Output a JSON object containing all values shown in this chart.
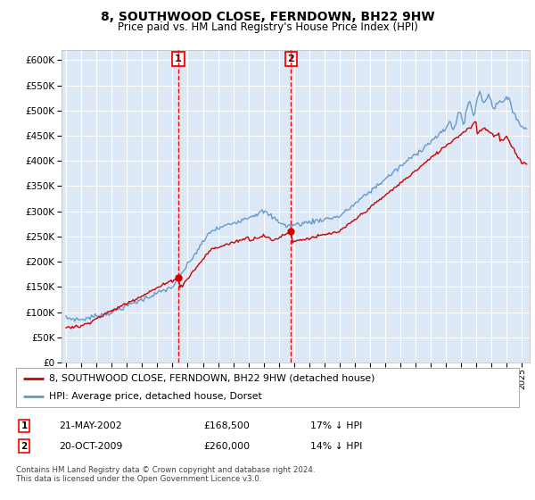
{
  "title": "8, SOUTHWOOD CLOSE, FERNDOWN, BH22 9HW",
  "subtitle": "Price paid vs. HM Land Registry's House Price Index (HPI)",
  "ylim": [
    0,
    620000
  ],
  "yticks": [
    0,
    50000,
    100000,
    150000,
    200000,
    250000,
    300000,
    350000,
    400000,
    450000,
    500000,
    550000,
    600000
  ],
  "background_color": "#ffffff",
  "plot_bg_color": "#dce8f5",
  "grid_color": "#ffffff",
  "red_line_color": "#cc0000",
  "blue_line_color": "#6699cc",
  "marker1_x": 2002.38,
  "marker1_y": 168500,
  "marker2_x": 2009.79,
  "marker2_y": 260000,
  "legend_red_label": "8, SOUTHWOOD CLOSE, FERNDOWN, BH22 9HW (detached house)",
  "legend_blue_label": "HPI: Average price, detached house, Dorset",
  "table_rows": [
    {
      "num": "1",
      "date": "21-MAY-2002",
      "price": "£168,500",
      "hpi": "17% ↓ HPI"
    },
    {
      "num": "2",
      "date": "20-OCT-2009",
      "price": "£260,000",
      "hpi": "14% ↓ HPI"
    }
  ],
  "footnote": "Contains HM Land Registry data © Crown copyright and database right 2024.\nThis data is licensed under the Open Government Licence v3.0.",
  "xmin": 1994.7,
  "xmax": 2025.5
}
